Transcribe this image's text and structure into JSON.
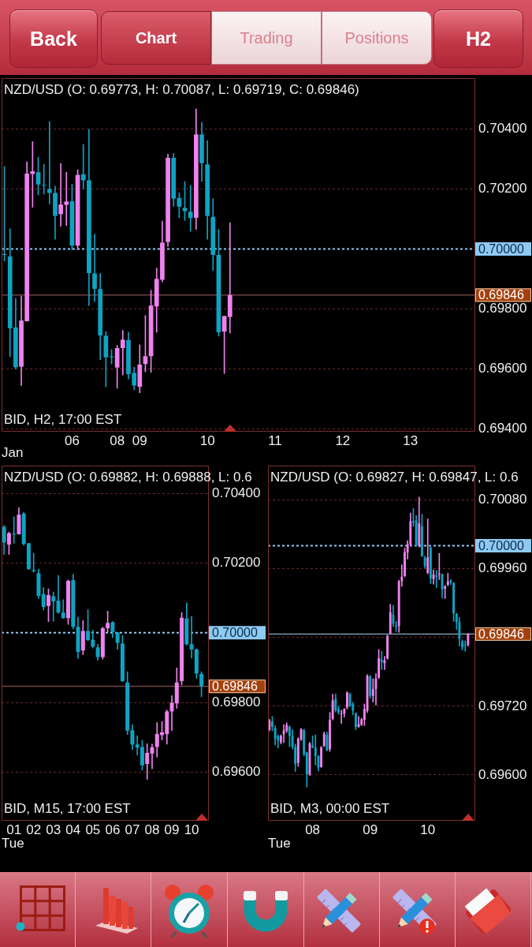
{
  "chart_data": [
    {
      "type": "other",
      "annotations": [
        "Back",
        "Chart",
        "Trading",
        "Positions",
        "H2"
      ]
    },
    {
      "type": "candlestick",
      "title": "NZD/USD (O: 0.69773, H: 0.70087, L: 0.69719, C: 0.69846)",
      "xlabel": "Jan",
      "annotations": [
        "BID, H2, 17:00 EST"
      ],
      "categories": [
        null,
        null,
        null,
        null,
        null,
        null,
        null,
        null,
        null,
        null,
        null,
        null,
        "06",
        null,
        null,
        null,
        null,
        null,
        null,
        null,
        "08",
        null,
        null,
        null,
        "09",
        null,
        null,
        null,
        null,
        null,
        null,
        null,
        null,
        null,
        null,
        null,
        "10",
        null,
        null,
        null,
        null,
        null,
        null,
        null,
        null,
        null,
        null,
        null,
        "11",
        null,
        null,
        null,
        null,
        null,
        null,
        null,
        null,
        null,
        null,
        null,
        "12",
        null,
        null,
        null,
        null,
        null,
        null,
        null,
        null,
        null,
        null,
        null,
        "13",
        null,
        null,
        null,
        null,
        null,
        null,
        null,
        null,
        null,
        null,
        null
      ],
      "ohlc": [
        [
          0.69982,
          0.70275,
          0.6996,
          0.6998
        ],
        [
          0.69975,
          0.70067,
          0.6964,
          0.69735
        ],
        [
          0.69738,
          0.69835,
          0.69599,
          0.69605
        ],
        [
          0.69607,
          0.69843,
          0.69544,
          0.69761
        ],
        [
          0.69759,
          0.70291,
          0.69759,
          0.70251
        ],
        [
          0.7025,
          0.70358,
          0.70139,
          0.70259
        ],
        [
          0.70256,
          0.70306,
          0.7018,
          0.70215
        ],
        [
          0.70212,
          0.70282,
          0.70183,
          0.70211
        ],
        [
          0.702,
          0.70425,
          0.7015,
          0.70187
        ],
        [
          0.70187,
          0.70209,
          0.70032,
          0.7011
        ],
        [
          0.70116,
          0.70285,
          0.70076,
          0.70148
        ],
        [
          0.70147,
          0.70256,
          0.70078,
          0.70158
        ],
        [
          0.70159,
          0.70216,
          0.69997,
          0.70011
        ],
        [
          0.70011,
          0.70264,
          0.69997,
          0.70247
        ],
        [
          0.70249,
          0.70349,
          0.702,
          0.70229
        ],
        [
          0.70229,
          0.70399,
          0.69811,
          0.69919
        ],
        [
          0.69918,
          0.70049,
          0.69824,
          0.69867
        ],
        [
          0.69866,
          0.69918,
          0.6963,
          0.69711
        ],
        [
          0.6971,
          0.69724,
          0.6954,
          0.69638
        ],
        [
          0.6964,
          0.69664,
          0.69616,
          0.69638
        ],
        [
          0.69604,
          0.69678,
          0.69535,
          0.69669
        ],
        [
          0.69669,
          0.69728,
          0.69579,
          0.69697
        ],
        [
          0.69696,
          0.69722,
          0.69566,
          0.69582
        ],
        [
          0.69586,
          0.69605,
          0.6953,
          0.69544
        ],
        [
          0.6954,
          0.6968,
          0.6952,
          0.69614
        ],
        [
          0.69616,
          0.69778,
          0.6959,
          0.69642
        ],
        [
          0.69642,
          0.69862,
          0.69588,
          0.69811
        ],
        [
          0.69808,
          0.69936,
          0.69722,
          0.699
        ],
        [
          0.69897,
          0.70093,
          0.6989,
          0.70021
        ],
        [
          0.70023,
          0.70316,
          0.70008,
          0.70304
        ],
        [
          0.70304,
          0.70319,
          0.70142,
          0.70168
        ],
        [
          0.7017,
          0.70187,
          0.70104,
          0.70141
        ],
        [
          0.70137,
          0.70225,
          0.70095,
          0.70126
        ],
        [
          0.70124,
          0.70212,
          0.70059,
          0.70103
        ],
        [
          0.70104,
          0.70467,
          0.70065,
          0.70382
        ],
        [
          0.70382,
          0.70422,
          0.70225,
          0.70286
        ],
        [
          0.70282,
          0.70361,
          0.70032,
          0.7011
        ],
        [
          0.70107,
          0.70168,
          0.69928,
          0.6998
        ],
        [
          0.6998,
          0.70065,
          0.69709,
          0.69722
        ],
        [
          0.69724,
          0.69776,
          0.69584,
          0.69776
        ],
        [
          0.69773,
          0.70087,
          0.69719,
          0.69846
        ],
        null,
        null,
        null,
        null,
        null,
        null,
        null,
        null,
        null,
        null,
        null,
        null,
        null,
        null,
        null,
        null,
        null,
        null,
        null,
        null,
        null,
        null,
        null,
        null,
        null,
        null,
        null,
        null,
        null,
        null,
        null,
        null,
        null,
        null,
        null,
        null,
        null,
        null,
        null,
        null,
        null,
        null,
        null
      ],
      "colors": [
        "#0fa3c2",
        "#0fa3c2",
        "#0fa3c2",
        "#ee82ee",
        "#ee82ee",
        "#ee82ee",
        "#0fa3c2",
        "#0fa3c2",
        "#0fa3c2",
        "#0fa3c2",
        "#ee82ee",
        "#ee82ee",
        "#0fa3c2",
        "#ee82ee",
        "#0fa3c2",
        "#0fa3c2",
        "#0fa3c2",
        "#0fa3c2",
        "#0fa3c2",
        "#0fa3c2",
        "#ee82ee",
        "#ee82ee",
        "#0fa3c2",
        "#0fa3c2",
        "#ee82ee",
        "#ee82ee",
        "#ee82ee",
        "#ee82ee",
        "#ee82ee",
        "#ee82ee",
        "#0fa3c2",
        "#0fa3c2",
        "#0fa3c2",
        "#0fa3c2",
        "#ee82ee",
        "#0fa3c2",
        "#0fa3c2",
        "#0fa3c2",
        "#0fa3c2",
        "#ee82ee",
        "#ee82ee",
        null,
        null,
        null,
        null,
        null,
        null,
        null,
        null,
        null,
        null,
        null,
        null,
        null,
        null,
        null,
        null,
        null,
        null,
        null,
        null,
        null,
        null,
        null,
        null,
        null,
        null,
        null,
        null,
        null,
        null,
        null,
        null,
        null,
        null,
        null,
        null,
        null,
        null,
        null,
        null,
        null,
        null,
        null
      ],
      "ylim": [
        0.6939,
        0.7057
      ],
      "yticks": [
        {
          "value": 0.694,
          "label": "0.69400"
        },
        {
          "value": 0.696,
          "label": "0.69600"
        },
        {
          "value": 0.698,
          "label": "0.69800"
        },
        {
          "value": 0.7,
          "label": null
        },
        {
          "value": 0.702,
          "label": "0.70200"
        },
        {
          "value": 0.704,
          "label": "0.70400"
        }
      ],
      "grid": "y",
      "ref_lines": [
        {
          "axis": "y",
          "value": 0.7,
          "label": "0.70000",
          "color": "#8ec9f2",
          "line_style": "dotted"
        },
        {
          "axis": "y",
          "value": 0.69846,
          "label": "0.69846",
          "color": "#a86060",
          "line_style": "solid"
        }
      ]
    },
    {
      "type": "candlestick",
      "title": "NZD/USD (O: 0.69882, H: 0.69888, L: 0.6",
      "xlabel": "Tue",
      "annotations": [
        "BID, M15, 17:00 EST"
      ],
      "categories": [
        null,
        null,
        "01",
        null,
        null,
        null,
        "02",
        null,
        null,
        null,
        "03",
        null,
        null,
        null,
        "04",
        null,
        null,
        null,
        "05",
        null,
        null,
        null,
        "06",
        null,
        null,
        null,
        "07",
        null,
        null,
        null,
        "08",
        null,
        null,
        null,
        "09",
        null,
        null,
        null,
        "10",
        null,
        null,
        null
      ],
      "ohlc": [
        [
          0.70304,
          0.70308,
          0.70225,
          0.70259
        ],
        [
          0.70253,
          0.70289,
          0.70225,
          0.70286
        ],
        [
          0.70283,
          0.70333,
          0.70257,
          0.70282
        ],
        [
          0.70283,
          0.70359,
          0.70283,
          0.70339
        ],
        [
          0.70342,
          0.70346,
          0.70251,
          0.70255
        ],
        [
          0.70257,
          0.70257,
          0.70181,
          0.70183
        ],
        [
          0.7018,
          0.70228,
          0.70174,
          0.70177
        ],
        [
          0.70171,
          0.70183,
          0.70098,
          0.70106
        ],
        [
          0.70111,
          0.7013,
          0.70065,
          0.70074
        ],
        [
          0.70077,
          0.70126,
          0.70032,
          0.70108
        ],
        [
          0.70105,
          0.70117,
          0.70033,
          0.7009
        ],
        [
          0.70092,
          0.70164,
          0.70056,
          0.70058
        ],
        [
          0.70058,
          0.70095,
          0.70041,
          0.70042
        ],
        [
          0.70042,
          0.70152,
          0.70024,
          0.70149
        ],
        [
          0.70151,
          0.70168,
          0.70011,
          0.70017
        ],
        [
          0.70017,
          0.70045,
          0.69926,
          0.69945
        ],
        [
          0.69949,
          0.70035,
          0.69937,
          0.70005
        ],
        [
          0.70005,
          0.70066,
          0.69977,
          0.69979
        ],
        [
          0.6998,
          0.70007,
          0.69956,
          0.6996
        ],
        [
          0.69958,
          0.69967,
          0.69921,
          0.6993
        ],
        [
          0.6993,
          0.70016,
          0.69924,
          0.70013
        ],
        [
          0.70013,
          0.70062,
          0.70002,
          0.70028
        ],
        [
          0.7003,
          0.70032,
          0.69986,
          0.70002
        ],
        [
          0.70001,
          0.70001,
          0.69952,
          0.69971
        ],
        [
          0.69969,
          0.69992,
          0.69859,
          0.69861
        ],
        [
          0.69857,
          0.69888,
          0.69708,
          0.69719
        ],
        [
          0.6972,
          0.69736,
          0.69664,
          0.69679
        ],
        [
          0.69679,
          0.69704,
          0.69649,
          0.6967
        ],
        [
          0.69672,
          0.69691,
          0.69605,
          0.69619
        ],
        [
          0.69623,
          0.69681,
          0.69579,
          0.69655
        ],
        [
          0.69653,
          0.6968,
          0.69609,
          0.69671
        ],
        [
          0.69672,
          0.69742,
          0.69643,
          0.69709
        ],
        [
          0.69706,
          0.69745,
          0.69692,
          0.69714
        ],
        [
          0.69709,
          0.69778,
          0.6968,
          0.69774
        ],
        [
          0.69774,
          0.69819,
          0.69719,
          0.69799
        ],
        [
          0.69797,
          0.69899,
          0.69783,
          0.69857
        ],
        [
          0.69861,
          0.70058,
          0.6985,
          0.70043
        ],
        [
          0.70041,
          0.70086,
          0.69964,
          0.69967
        ],
        [
          0.69967,
          0.70047,
          0.69927,
          0.69952
        ],
        [
          0.69952,
          0.69954,
          0.69869,
          0.69883
        ],
        [
          0.69882,
          0.69888,
          0.69816,
          0.69846
        ],
        null
      ],
      "colors": [
        "#0fa3c2",
        "#ee82ee",
        "#0fa3c2",
        "#ee82ee",
        "#0fa3c2",
        "#0fa3c2",
        "#0fa3c2",
        "#0fa3c2",
        "#0fa3c2",
        "#ee82ee",
        "#0fa3c2",
        "#0fa3c2",
        "#0fa3c2",
        "#ee82ee",
        "#0fa3c2",
        "#0fa3c2",
        "#ee82ee",
        "#0fa3c2",
        "#0fa3c2",
        "#0fa3c2",
        "#ee82ee",
        "#ee82ee",
        "#0fa3c2",
        "#0fa3c2",
        "#0fa3c2",
        "#0fa3c2",
        "#0fa3c2",
        "#0fa3c2",
        "#0fa3c2",
        "#ee82ee",
        "#ee82ee",
        "#ee82ee",
        "#ee82ee",
        "#ee82ee",
        "#ee82ee",
        "#ee82ee",
        "#ee82ee",
        "#0fa3c2",
        "#0fa3c2",
        "#0fa3c2",
        "#0fa3c2",
        null
      ],
      "ylim": [
        0.6946,
        0.7048
      ],
      "yticks": [
        {
          "value": 0.696,
          "label": "0.69600"
        },
        {
          "value": 0.698,
          "label": "0.69800"
        },
        {
          "value": 0.7,
          "label": null
        },
        {
          "value": 0.702,
          "label": "0.70200"
        },
        {
          "value": 0.704,
          "label": "0.70400"
        }
      ],
      "grid": "y",
      "ref_lines": [
        {
          "axis": "y",
          "value": 0.7,
          "label": "0.70000",
          "color": "#8ec9f2",
          "line_style": "dotted"
        },
        {
          "axis": "y",
          "value": 0.69846,
          "label": "0.69846",
          "color": "#a86060",
          "line_style": "solid"
        }
      ]
    },
    {
      "type": "candlestick",
      "title": "NZD/USD (O: 0.69827, H: 0.69847, L: 0.6",
      "xlabel": "Tue",
      "annotations": [
        "BID, M3, 00:00 EST"
      ],
      "categories": [
        null,
        null,
        null,
        null,
        null,
        null,
        null,
        null,
        null,
        null,
        null,
        null,
        null,
        null,
        null,
        "08",
        null,
        null,
        null,
        null,
        null,
        null,
        null,
        null,
        null,
        null,
        null,
        null,
        null,
        null,
        null,
        null,
        null,
        null,
        null,
        "09",
        null,
        null,
        null,
        null,
        null,
        null,
        null,
        null,
        null,
        null,
        null,
        null,
        null,
        null,
        null,
        null,
        null,
        null,
        null,
        "10",
        null,
        null,
        null,
        null,
        null,
        null,
        null,
        null,
        null,
        null,
        null,
        null,
        null,
        null,
        null,
        null
      ],
      "ohlc": [
        [
          0.69679,
          0.69697,
          0.69677,
          0.69695
        ],
        [
          0.69693,
          0.69702,
          0.69677,
          0.69684
        ],
        [
          0.69682,
          0.69686,
          0.69652,
          0.69663
        ],
        [
          0.69668,
          0.6967,
          0.69647,
          0.6966
        ],
        [
          0.69657,
          0.6967,
          0.69654,
          0.69668
        ],
        [
          0.69671,
          0.69688,
          0.69656,
          0.69678
        ],
        [
          0.69677,
          0.69691,
          0.69674,
          0.69687
        ],
        [
          0.69684,
          0.69686,
          0.69649,
          0.69668
        ],
        [
          0.69668,
          0.69679,
          0.69645,
          0.69649
        ],
        [
          0.69649,
          0.69654,
          0.69606,
          0.69619
        ],
        [
          0.69621,
          0.69665,
          0.69615,
          0.69663
        ],
        [
          0.69662,
          0.69681,
          0.6966,
          0.6968
        ],
        [
          0.69678,
          0.6968,
          0.69633,
          0.69636
        ],
        [
          0.69639,
          0.6964,
          0.69579,
          0.69601
        ],
        [
          0.69601,
          0.69657,
          0.69599,
          0.69655
        ],
        [
          0.69651,
          0.69668,
          0.69647,
          0.69648
        ],
        [
          0.69648,
          0.6967,
          0.69617,
          0.69633
        ],
        [
          0.69633,
          0.69634,
          0.69607,
          0.69613
        ],
        [
          0.69614,
          0.6965,
          0.69613,
          0.69648
        ],
        [
          0.69651,
          0.69675,
          0.69649,
          0.69672
        ],
        [
          0.6967,
          0.69675,
          0.69642,
          0.69643
        ],
        [
          0.69645,
          0.69709,
          0.69641,
          0.69696
        ],
        [
          0.69698,
          0.69741,
          0.69696,
          0.6973
        ],
        [
          0.69733,
          0.69741,
          0.6971,
          0.69713
        ],
        [
          0.69715,
          0.6972,
          0.69706,
          0.69709
        ],
        [
          0.69706,
          0.69713,
          0.6969,
          0.69707
        ],
        [
          0.69707,
          0.69716,
          0.69701,
          0.69715
        ],
        [
          0.69718,
          0.69745,
          0.69715,
          0.69744
        ],
        [
          0.69741,
          0.69743,
          0.69719,
          0.69721
        ],
        [
          0.69724,
          0.69727,
          0.69705,
          0.69712
        ],
        [
          0.69707,
          0.69709,
          0.69679,
          0.69684
        ],
        [
          0.69684,
          0.69702,
          0.69683,
          0.69689
        ],
        [
          0.69688,
          0.69699,
          0.69686,
          0.69697
        ],
        [
          0.69696,
          0.69724,
          0.69686,
          0.69715
        ],
        [
          0.69712,
          0.69775,
          0.69709,
          0.69773
        ],
        [
          0.69772,
          0.69774,
          0.69734,
          0.69738
        ],
        [
          0.69738,
          0.69768,
          0.69727,
          0.6975
        ],
        [
          0.6975,
          0.69777,
          0.69722,
          0.69768
        ],
        [
          0.6977,
          0.69819,
          0.69768,
          0.69804
        ],
        [
          0.69801,
          0.69816,
          0.69784,
          0.69797
        ],
        [
          0.69795,
          0.69807,
          0.69784,
          0.698
        ],
        [
          0.69803,
          0.69844,
          0.69802,
          0.69843
        ],
        [
          0.69847,
          0.69898,
          0.69847,
          0.69884
        ],
        [
          0.6988,
          0.69896,
          0.69859,
          0.69864
        ],
        [
          0.69861,
          0.69868,
          0.6985,
          0.69859
        ],
        [
          0.6986,
          0.6994,
          0.69849,
          0.69938
        ],
        [
          0.69938,
          0.69967,
          0.69929,
          0.69946
        ],
        [
          0.69947,
          0.69996,
          0.69946,
          0.69989
        ],
        [
          0.69988,
          0.70009,
          0.69977,
          0.70003
        ],
        [
          0.70002,
          0.70057,
          0.7,
          0.70043
        ],
        [
          0.70043,
          0.70065,
          0.70034,
          0.70041
        ],
        [
          0.70044,
          0.70053,
          0.69999,
          0.7
        ],
        [
          0.7,
          0.70085,
          0.69998,
          0.70039
        ],
        [
          0.70034,
          0.70055,
          0.69981,
          0.69982
        ],
        [
          0.69979,
          0.69982,
          0.69961,
          0.69965
        ],
        [
          0.69953,
          0.70047,
          0.69951,
          0.6998
        ],
        [
          0.69997,
          0.69998,
          0.69934,
          0.69943
        ],
        [
          0.69942,
          0.69958,
          0.69933,
          0.6995
        ],
        [
          0.69948,
          0.69957,
          0.69927,
          0.69946
        ],
        [
          0.6995,
          0.69987,
          0.69941,
          0.69951
        ],
        [
          0.6995,
          0.69951,
          0.69909,
          0.69924
        ],
        [
          0.69925,
          0.69931,
          0.69908,
          0.69929
        ],
        [
          0.69932,
          0.69952,
          0.6993,
          0.69938
        ],
        [
          0.69939,
          0.69941,
          0.69932,
          0.69936
        ],
        [
          0.69935,
          0.69936,
          0.69868,
          0.69882
        ],
        [
          0.69881,
          0.69882,
          0.69854,
          0.69867
        ],
        [
          0.69867,
          0.69875,
          0.69825,
          0.69838
        ],
        [
          0.69833,
          0.69836,
          0.69818,
          0.69823
        ],
        [
          0.69827,
          0.69834,
          0.69816,
          0.69826
        ],
        [
          0.69827,
          0.69847,
          0.69825,
          0.69846
        ],
        null,
        null
      ],
      "colors": [
        "#ee82ee",
        "#0fa3c2",
        "#0fa3c2",
        "#0fa3c2",
        "#ee82ee",
        "#ee82ee",
        "#ee82ee",
        "#0fa3c2",
        "#0fa3c2",
        "#0fa3c2",
        "#ee82ee",
        "#ee82ee",
        "#0fa3c2",
        "#0fa3c2",
        "#ee82ee",
        "#0fa3c2",
        "#0fa3c2",
        "#0fa3c2",
        "#ee82ee",
        "#ee82ee",
        "#0fa3c2",
        "#ee82ee",
        "#ee82ee",
        "#0fa3c2",
        "#0fa3c2",
        "#ee82ee",
        "#ee82ee",
        "#ee82ee",
        "#0fa3c2",
        "#0fa3c2",
        "#0fa3c2",
        "#ee82ee",
        "#ee82ee",
        "#ee82ee",
        "#ee82ee",
        "#0fa3c2",
        "#ee82ee",
        "#ee82ee",
        "#ee82ee",
        "#0fa3c2",
        "#ee82ee",
        "#ee82ee",
        "#ee82ee",
        "#0fa3c2",
        "#0fa3c2",
        "#ee82ee",
        "#ee82ee",
        "#ee82ee",
        "#ee82ee",
        "#ee82ee",
        "#0fa3c2",
        "#0fa3c2",
        "#ee82ee",
        "#0fa3c2",
        "#0fa3c2",
        "#ee82ee",
        "#0fa3c2",
        "#ee82ee",
        "#0fa3c2",
        "#ee82ee",
        "#0fa3c2",
        "#ee82ee",
        "#ee82ee",
        "#0fa3c2",
        "#0fa3c2",
        "#0fa3c2",
        "#0fa3c2",
        "#0fa3c2",
        "#0fa3c2",
        "#ee82ee",
        null,
        null
      ],
      "ylim": [
        0.6952,
        0.7014
      ],
      "yticks": [
        {
          "value": 0.696,
          "label": "0.69600"
        },
        {
          "value": 0.6972,
          "label": "0.69720"
        },
        {
          "value": 0.6984,
          "label": null
        },
        {
          "value": 0.6996,
          "label": "0.69960"
        },
        {
          "value": 0.7008,
          "label": "0.70080"
        }
      ],
      "grid": "y",
      "ref_lines": [
        {
          "axis": "y",
          "value": 0.7,
          "label": "0.70000",
          "color": "#8ec9f2",
          "line_style": "dotted"
        },
        {
          "axis": "y",
          "value": 0.69846,
          "label": "0.69846",
          "color": "#a6d6f0",
          "line_style": "solid"
        }
      ]
    }
  ]
}
